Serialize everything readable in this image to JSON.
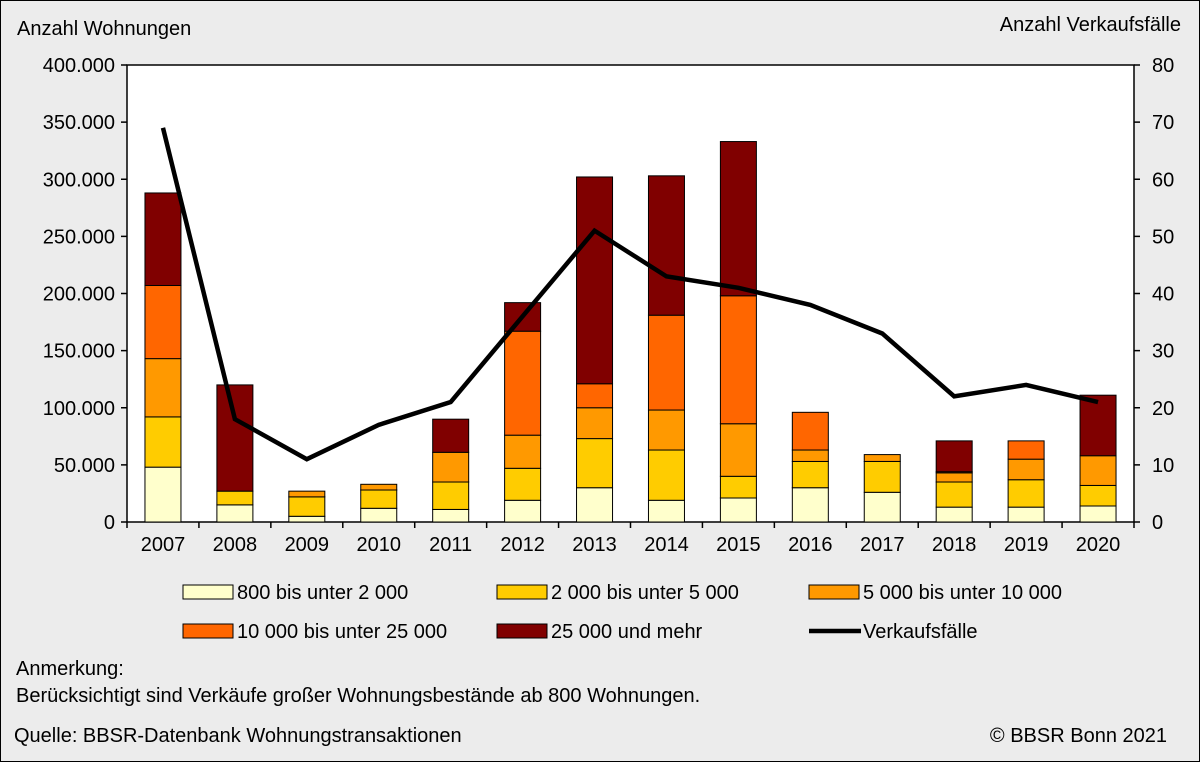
{
  "chart_data": {
    "type": "bar",
    "stacked": true,
    "categories": [
      "2007",
      "2008",
      "2009",
      "2010",
      "2011",
      "2012",
      "2013",
      "2014",
      "2015",
      "2016",
      "2017",
      "2018",
      "2019",
      "2020"
    ],
    "y_left_label": "Anzahl Wohnungen",
    "y_right_label": "Anzahl Verkaufsfälle",
    "y_left_range": [
      0,
      400000
    ],
    "y_left_ticks": [
      {
        "value": 0,
        "label": "0"
      },
      {
        "value": 50000,
        "label": "50.000"
      },
      {
        "value": 100000,
        "label": "100.000"
      },
      {
        "value": 150000,
        "label": "150.000"
      },
      {
        "value": 200000,
        "label": "200.000"
      },
      {
        "value": 250000,
        "label": "250.000"
      },
      {
        "value": 300000,
        "label": "300.000"
      },
      {
        "value": 350000,
        "label": "350.000"
      },
      {
        "value": 400000,
        "label": "400.000"
      }
    ],
    "y_right_range": [
      0,
      80
    ],
    "y_right_ticks": [
      "0",
      "10",
      "20",
      "30",
      "40",
      "50",
      "60",
      "70",
      "80"
    ],
    "grid": false,
    "legend_position": "bottom",
    "series": [
      {
        "name": "800 bis unter 2 000",
        "color": "#ffffcc",
        "values": [
          48000,
          15000,
          5000,
          12000,
          11000,
          19000,
          30000,
          19000,
          21000,
          30000,
          26000,
          13000,
          13000,
          14000
        ]
      },
      {
        "name": "2 000 bis unter 5 000",
        "color": "#ffcc00",
        "values": [
          44000,
          12000,
          17000,
          16000,
          24000,
          28000,
          43000,
          44000,
          19000,
          23000,
          27000,
          22000,
          24000,
          18000
        ]
      },
      {
        "name": "5 000 bis unter 10 000",
        "color": "#ff9900",
        "values": [
          51000,
          0,
          5000,
          5000,
          26000,
          29000,
          27000,
          35000,
          46000,
          10000,
          6000,
          8000,
          18000,
          26000
        ]
      },
      {
        "name": "10 000 bis unter 25 000",
        "color": "#ff6600",
        "values": [
          64000,
          0,
          0,
          0,
          0,
          91000,
          21000,
          83000,
          112000,
          33000,
          0,
          1000,
          16000,
          0
        ]
      },
      {
        "name": "25 000 und mehr",
        "color": "#800000",
        "values": [
          81000,
          93000,
          0,
          0,
          29000,
          25000,
          181000,
          122000,
          135000,
          0,
          0,
          27000,
          0,
          53000
        ]
      }
    ],
    "line_series": {
      "name": "Verkaufsfälle",
      "color": "#000000",
      "values": [
        69,
        18,
        11,
        17,
        21,
        36,
        51,
        43,
        41,
        38,
        33,
        22,
        24,
        21
      ]
    }
  },
  "notes": {
    "heading": "Anmerkung:",
    "text": "Berücksichtigt sind Verkäufe großer Wohnungsbestände ab 800 Wohnungen."
  },
  "footer": {
    "source": "Quelle: BBSR-Datenbank Wohnungstransaktionen",
    "copyright": "© BBSR Bonn 2021"
  }
}
